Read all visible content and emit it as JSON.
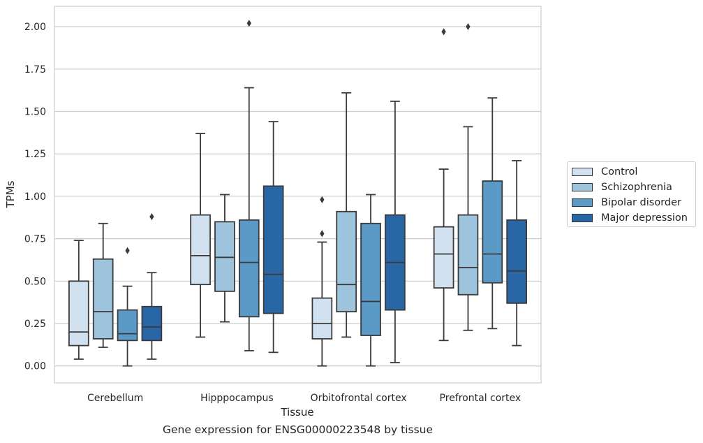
{
  "chart_data": {
    "type": "boxplot",
    "xlabel": "Tissue",
    "ylabel": "TPMs",
    "caption": "Gene expression for ENSG00000223548 by tissue",
    "ylim": [
      -0.1,
      2.12
    ],
    "yticks": [
      0.0,
      0.25,
      0.5,
      0.75,
      1.0,
      1.25,
      1.5,
      1.75,
      2.0
    ],
    "ytick_labels": [
      "0.00",
      "0.25",
      "0.50",
      "0.75",
      "1.00",
      "1.25",
      "1.50",
      "1.75",
      "2.00"
    ],
    "grid": "horizontal",
    "legend_position": "right-outside",
    "categories": [
      "Cerebellum",
      "Hipppocampus",
      "Orbitofrontal cortex",
      "Prefrontal cortex"
    ],
    "series": [
      {
        "name": "Control",
        "color": "#d1e1f0",
        "boxes": [
          {
            "whislo": 0.04,
            "q1": 0.12,
            "med": 0.2,
            "q3": 0.5,
            "whishi": 0.74,
            "fliers": []
          },
          {
            "whislo": 0.17,
            "q1": 0.48,
            "med": 0.65,
            "q3": 0.89,
            "whishi": 1.37,
            "fliers": []
          },
          {
            "whislo": 0.0,
            "q1": 0.16,
            "med": 0.25,
            "q3": 0.4,
            "whishi": 0.73,
            "fliers": [
              0.78,
              0.98
            ]
          },
          {
            "whislo": 0.15,
            "q1": 0.46,
            "med": 0.66,
            "q3": 0.82,
            "whishi": 1.16,
            "fliers": [
              1.97
            ]
          }
        ]
      },
      {
        "name": "Schizophrenia",
        "color": "#9dc3dd",
        "boxes": [
          {
            "whislo": 0.11,
            "q1": 0.16,
            "med": 0.32,
            "q3": 0.63,
            "whishi": 0.84,
            "fliers": []
          },
          {
            "whislo": 0.26,
            "q1": 0.44,
            "med": 0.64,
            "q3": 0.85,
            "whishi": 1.01,
            "fliers": []
          },
          {
            "whislo": 0.17,
            "q1": 0.32,
            "med": 0.48,
            "q3": 0.91,
            "whishi": 1.61,
            "fliers": []
          },
          {
            "whislo": 0.21,
            "q1": 0.42,
            "med": 0.58,
            "q3": 0.89,
            "whishi": 1.41,
            "fliers": [
              2.0
            ]
          }
        ]
      },
      {
        "name": "Bipolar disorder",
        "color": "#5b9ac6",
        "boxes": [
          {
            "whislo": 0.0,
            "q1": 0.15,
            "med": 0.19,
            "q3": 0.33,
            "whishi": 0.47,
            "fliers": [
              0.68
            ]
          },
          {
            "whislo": 0.09,
            "q1": 0.29,
            "med": 0.61,
            "q3": 0.86,
            "whishi": 1.64,
            "fliers": [
              2.02
            ]
          },
          {
            "whislo": 0.0,
            "q1": 0.18,
            "med": 0.38,
            "q3": 0.84,
            "whishi": 1.01,
            "fliers": []
          },
          {
            "whislo": 0.22,
            "q1": 0.49,
            "med": 0.66,
            "q3": 1.09,
            "whishi": 1.58,
            "fliers": []
          }
        ]
      },
      {
        "name": "Major depression",
        "color": "#2866a6",
        "boxes": [
          {
            "whislo": 0.04,
            "q1": 0.15,
            "med": 0.23,
            "q3": 0.35,
            "whishi": 0.55,
            "fliers": [
              0.88
            ]
          },
          {
            "whislo": 0.08,
            "q1": 0.31,
            "med": 0.54,
            "q3": 1.06,
            "whishi": 1.44,
            "fliers": []
          },
          {
            "whislo": 0.02,
            "q1": 0.33,
            "med": 0.61,
            "q3": 0.89,
            "whishi": 1.56,
            "fliers": []
          },
          {
            "whislo": 0.12,
            "q1": 0.37,
            "med": 0.56,
            "q3": 0.86,
            "whishi": 1.21,
            "fliers": []
          }
        ]
      }
    ]
  }
}
